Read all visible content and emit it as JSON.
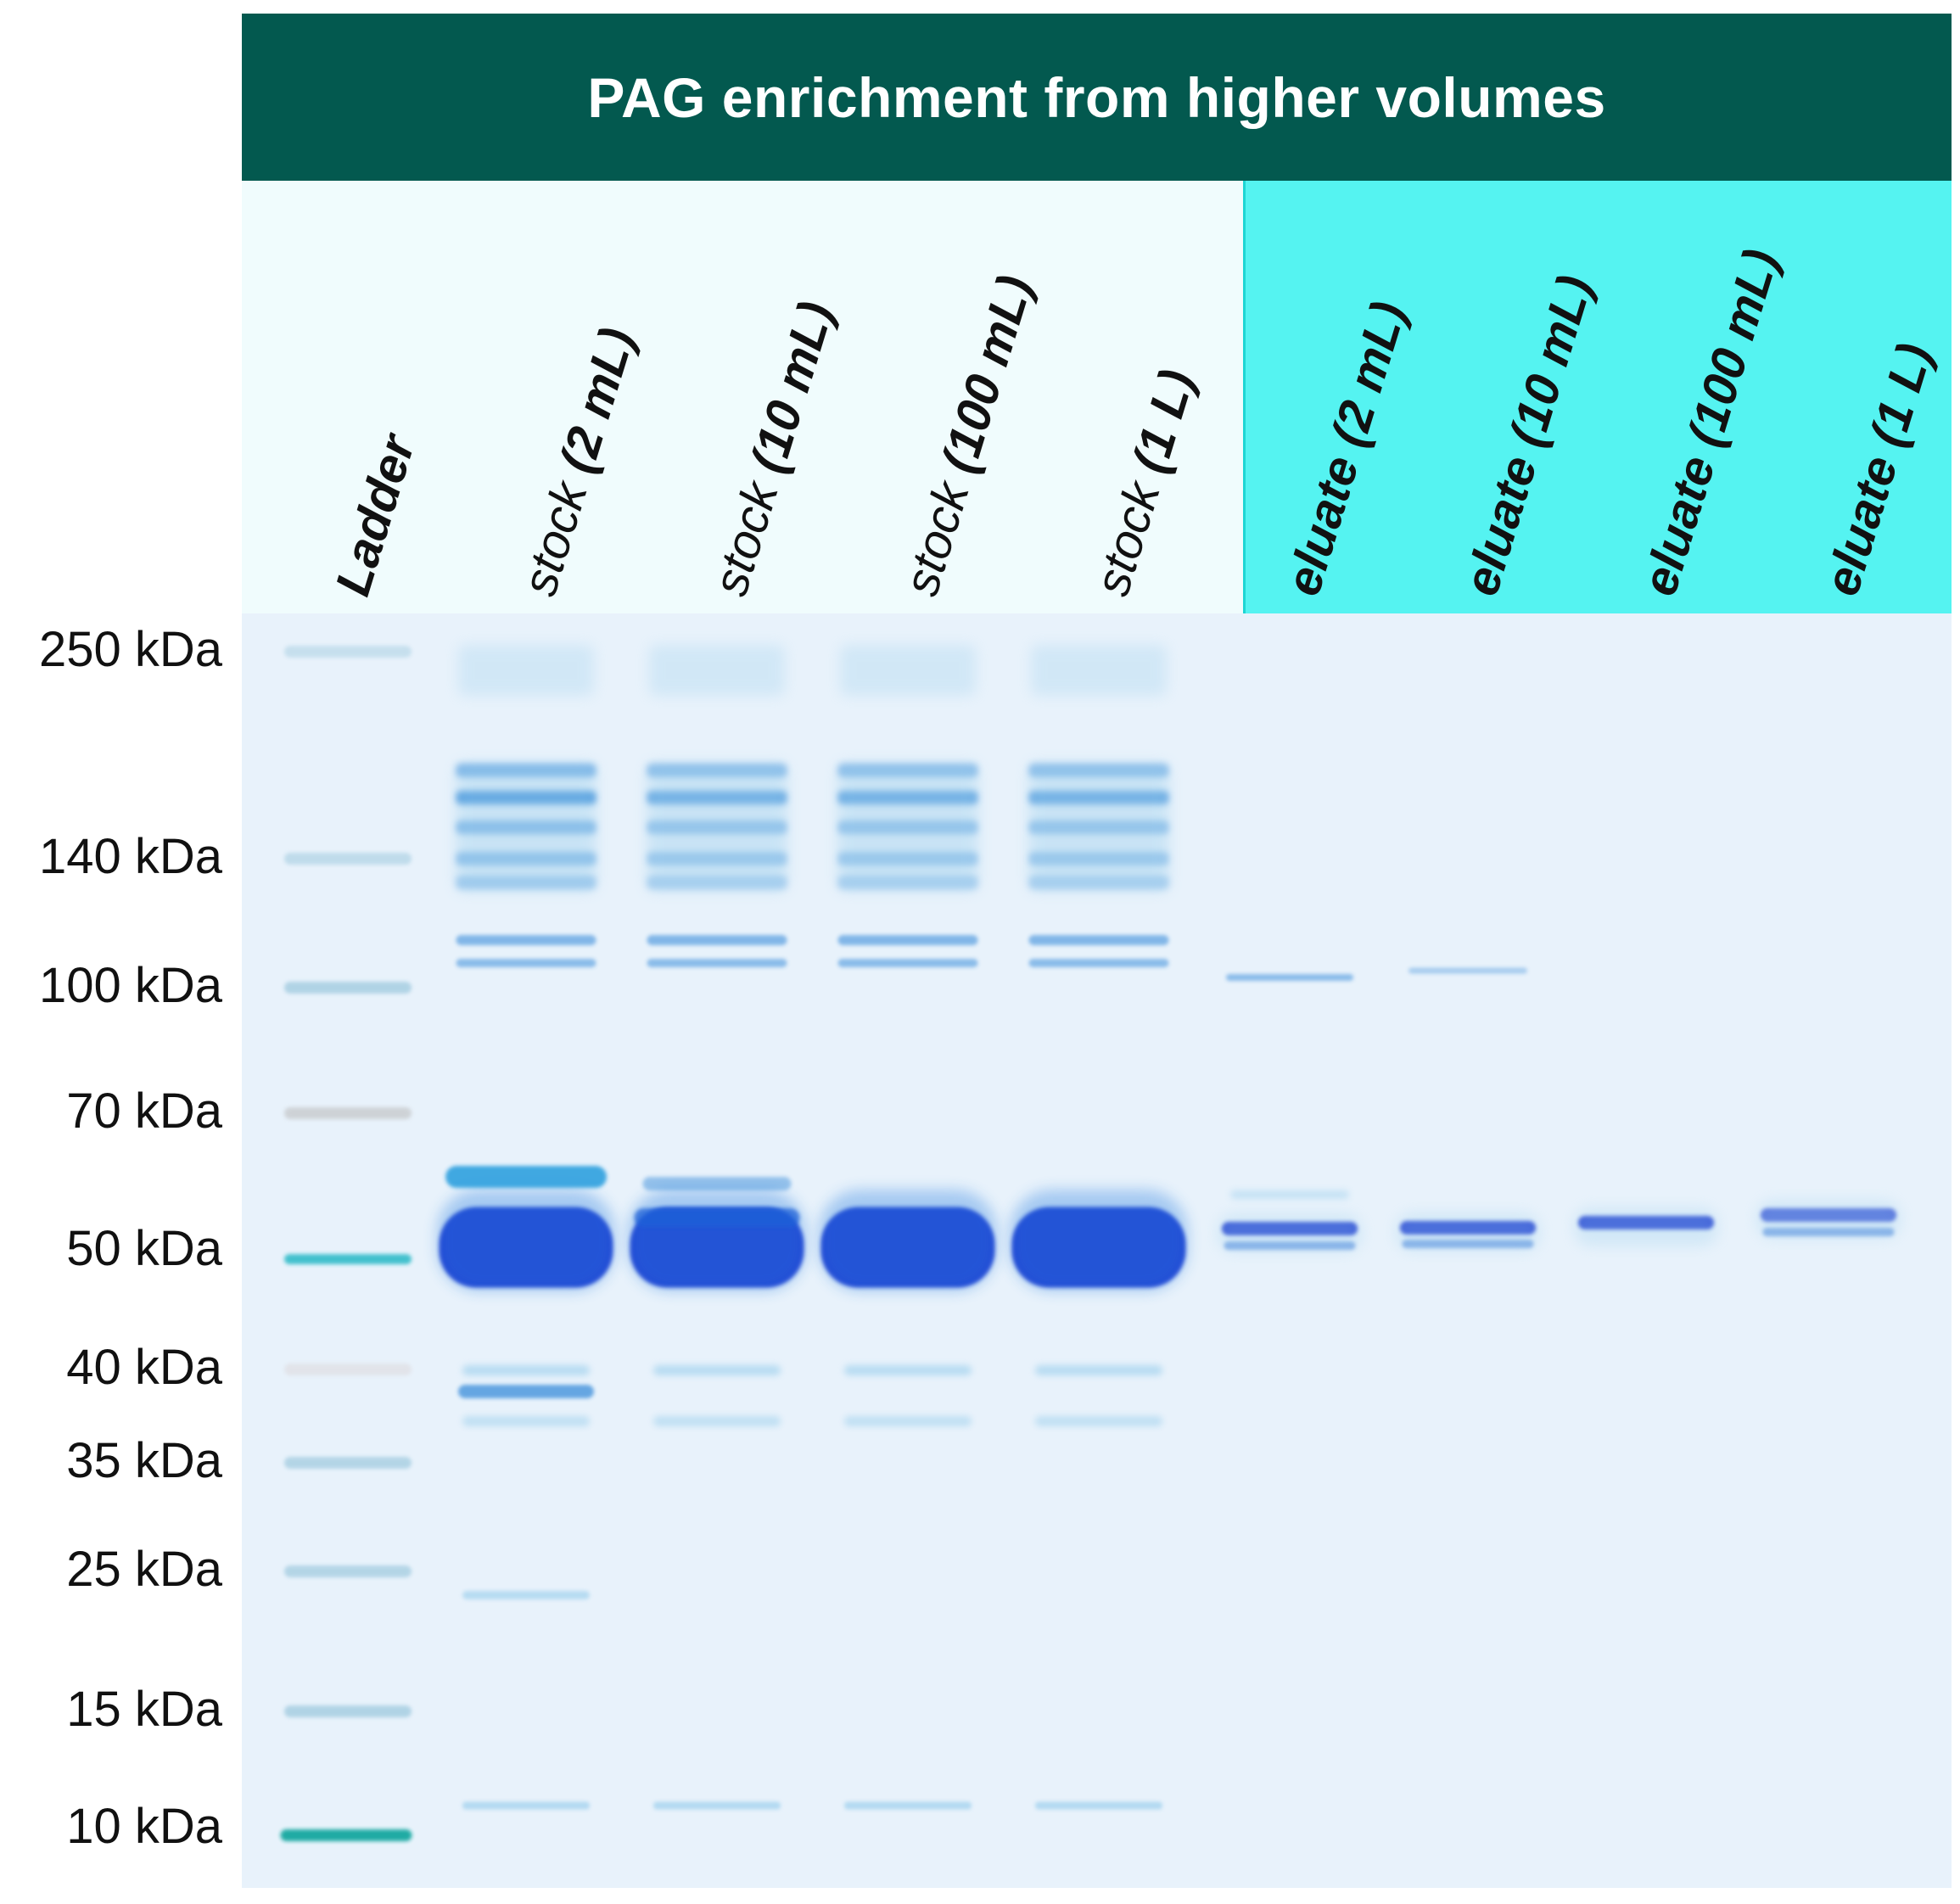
{
  "title": "PAG enrichment from higher volumes",
  "lanes": [
    {
      "id": "ladder",
      "word": "Ladder",
      "volume": "",
      "group": "ladder"
    },
    {
      "id": "stock-2ml",
      "word": "stock",
      "volume": "(2 mL)",
      "group": "stock"
    },
    {
      "id": "stock-10ml",
      "word": "stock",
      "volume": "(10 mL)",
      "group": "stock"
    },
    {
      "id": "stock-100ml",
      "word": "stock",
      "volume": "(100 mL)",
      "group": "stock"
    },
    {
      "id": "stock-1l",
      "word": "stock",
      "volume": "(1 L)",
      "group": "stock"
    },
    {
      "id": "eluate-2ml",
      "word": "eluate",
      "volume": "(2 mL)",
      "group": "eluate"
    },
    {
      "id": "eluate-10ml",
      "word": "eluate",
      "volume": "(10 mL)",
      "group": "eluate"
    },
    {
      "id": "eluate-100ml",
      "word": "eluate",
      "volume": "(100 mL)",
      "group": "eluate"
    },
    {
      "id": "eluate-1l",
      "word": "eluate",
      "volume": "(1 L)",
      "group": "eluate"
    }
  ],
  "markers": [
    {
      "label": "250 kDa",
      "kda": 250
    },
    {
      "label": "140 kDa",
      "kda": 140
    },
    {
      "label": "100 kDa",
      "kda": 100
    },
    {
      "label": "70 kDa",
      "kda": 70
    },
    {
      "label": "50 kDa",
      "kda": 50
    },
    {
      "label": "40 kDa",
      "kda": 40
    },
    {
      "label": "35 kDa",
      "kda": 35
    },
    {
      "label": "25 kDa",
      "kda": 25
    },
    {
      "label": "15 kDa",
      "kda": 15
    },
    {
      "label": "10 kDa",
      "kda": 10
    }
  ],
  "colors": {
    "title_bar": "#03594f",
    "header_stock_bg": "#f0fcfd",
    "header_eluate_bg": "#55f3f1",
    "gel_bg": "#e8f2fb",
    "band_strong": "#1536d0",
    "band_medium": "#2f86d8",
    "band_faint": "#8fc9ea",
    "ladder_band": "#9ec9de",
    "ladder_50": "#27b9c6",
    "ladder_10": "#16a8a0"
  }
}
